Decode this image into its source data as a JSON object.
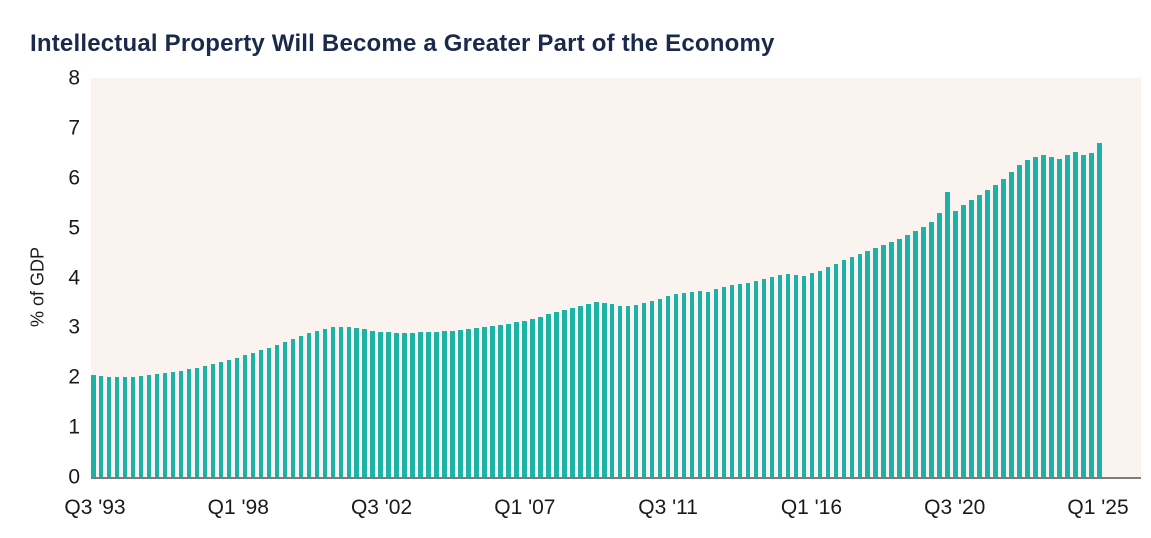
{
  "title": "Intellectual Property Will Become a Greater Part of the Economy",
  "colors": {
    "title_text": "#1b2a4c",
    "bar": "#1cb2a5",
    "plot_background": "#faf3f0",
    "axis_line": "#7d7d7d",
    "tick_text": "#1a1a1a",
    "page_background": "#ffffff"
  },
  "chart_data": {
    "type": "bar",
    "title": "Intellectual Property Will Become a Greater Part of the Economy",
    "xlabel": "",
    "ylabel": "% of GDP",
    "ylim": [
      0,
      8
    ],
    "yticks": [
      0,
      1,
      2,
      3,
      4,
      5,
      6,
      7,
      8
    ],
    "grid": "off",
    "legend": "none",
    "frequency": "quarterly",
    "start_period": "Q3 1993",
    "end_period": "Q1 2025",
    "xtick_labels": [
      "Q3 '93",
      "Q1 '98",
      "Q3 '02",
      "Q1 '07",
      "Q3 '11",
      "Q1 '16",
      "Q3 '20",
      "Q1 '25"
    ],
    "xtick_indices": [
      0,
      18,
      36,
      54,
      72,
      90,
      108,
      126
    ],
    "values": [
      2.05,
      2.03,
      2.01,
      2.0,
      2.0,
      2.01,
      2.03,
      2.05,
      2.07,
      2.09,
      2.11,
      2.13,
      2.16,
      2.19,
      2.22,
      2.26,
      2.3,
      2.34,
      2.39,
      2.44,
      2.49,
      2.54,
      2.59,
      2.65,
      2.71,
      2.77,
      2.83,
      2.88,
      2.93,
      2.97,
      3.0,
      3.01,
      3.0,
      2.98,
      2.96,
      2.93,
      2.91,
      2.9,
      2.89,
      2.89,
      2.89,
      2.9,
      2.9,
      2.91,
      2.92,
      2.93,
      2.94,
      2.96,
      2.98,
      3.0,
      3.02,
      3.04,
      3.07,
      3.1,
      3.13,
      3.17,
      3.21,
      3.26,
      3.3,
      3.34,
      3.38,
      3.43,
      3.47,
      3.51,
      3.49,
      3.46,
      3.43,
      3.42,
      3.44,
      3.48,
      3.52,
      3.57,
      3.62,
      3.66,
      3.68,
      3.71,
      3.73,
      3.7,
      3.76,
      3.81,
      3.85,
      3.87,
      3.9,
      3.93,
      3.97,
      4.01,
      4.05,
      4.08,
      4.06,
      4.04,
      4.09,
      4.14,
      4.21,
      4.28,
      4.36,
      4.42,
      4.47,
      4.53,
      4.59,
      4.65,
      4.71,
      4.78,
      4.85,
      4.93,
      5.02,
      5.12,
      5.3,
      5.72,
      5.34,
      5.45,
      5.55,
      5.65,
      5.76,
      5.86,
      5.98,
      6.12,
      6.25,
      6.35,
      6.42,
      6.45,
      6.42,
      6.38,
      6.45,
      6.52,
      6.46,
      6.5,
      6.7
    ]
  }
}
